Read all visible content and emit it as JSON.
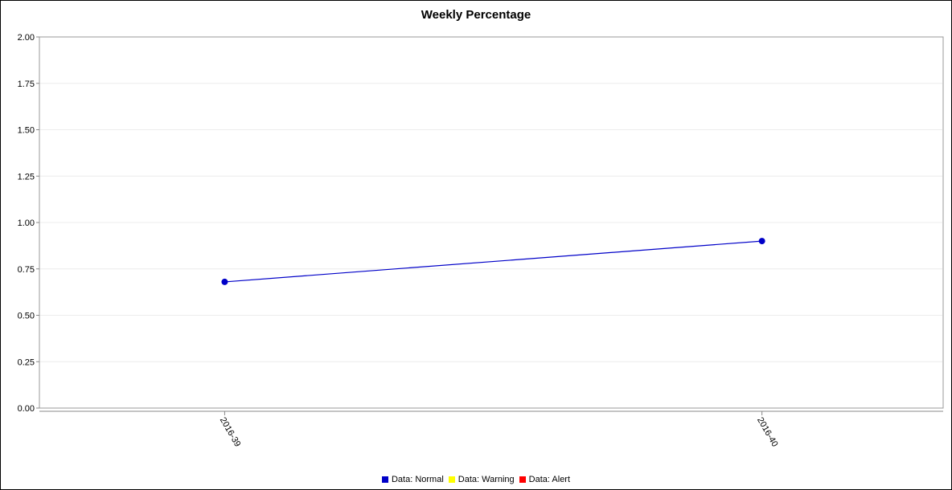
{
  "chart_data": {
    "type": "line",
    "title": "Weekly Percentage",
    "xlabel": "",
    "ylabel": "",
    "categories": [
      "2016-39",
      "2016-40"
    ],
    "series": [
      {
        "name": "Data: Normal",
        "color": "#0000c8",
        "values": [
          0.68,
          0.9
        ]
      }
    ],
    "ylim": [
      0,
      2.0
    ],
    "yticks": [
      "0.00",
      "0.25",
      "0.50",
      "0.75",
      "1.00",
      "1.25",
      "1.50",
      "1.75",
      "2.00"
    ],
    "grid": true,
    "legend_position": "bottom",
    "legend": [
      {
        "label": "Data: Normal",
        "color": "#0000c8"
      },
      {
        "label": "Data: Warning",
        "color": "#ffff00"
      },
      {
        "label": "Data: Alert",
        "color": "#ff0000"
      }
    ]
  }
}
